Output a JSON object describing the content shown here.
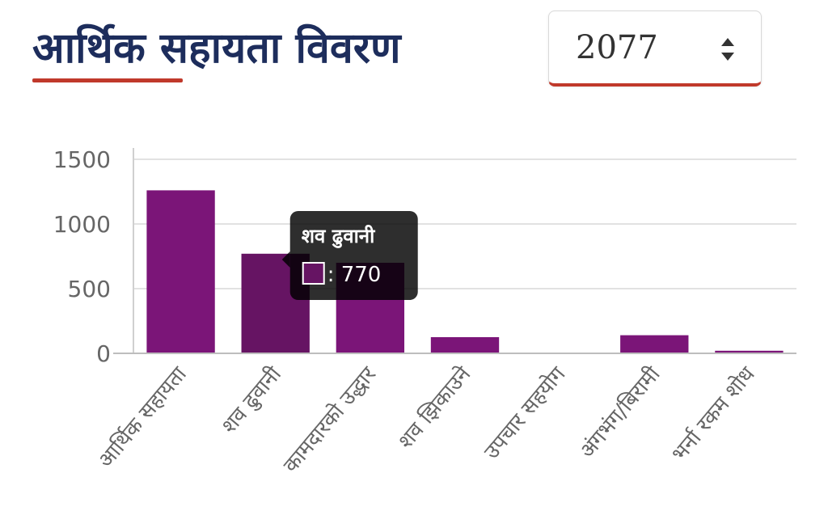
{
  "header": {
    "title": "आर्थिक सहायता विवरण",
    "accent_color": "#c0392b",
    "title_color": "#1d2d5c"
  },
  "year_select": {
    "value": "2077",
    "icon": "sort-updown-icon"
  },
  "chart_data": {
    "type": "bar",
    "categories": [
      "आर्थिक सहायता",
      "शव ढुवानी",
      "कामदारको उद्धार",
      "शव झिकाउने",
      "उपचार सहयोग",
      "अंगभंग/बिरामी",
      "भर्ना रकम शोध"
    ],
    "values": [
      1260,
      770,
      700,
      125,
      0,
      140,
      20
    ],
    "ylim": [
      0,
      1500
    ],
    "yticks": [
      0,
      500,
      1000,
      1500
    ],
    "grid": true,
    "legend": "none",
    "bar_color": "#7b1578",
    "active_bar_color": "#661463",
    "active_index": 1,
    "tooltip": {
      "title": "शव ढुवानी",
      "value_text": ": 770"
    }
  }
}
